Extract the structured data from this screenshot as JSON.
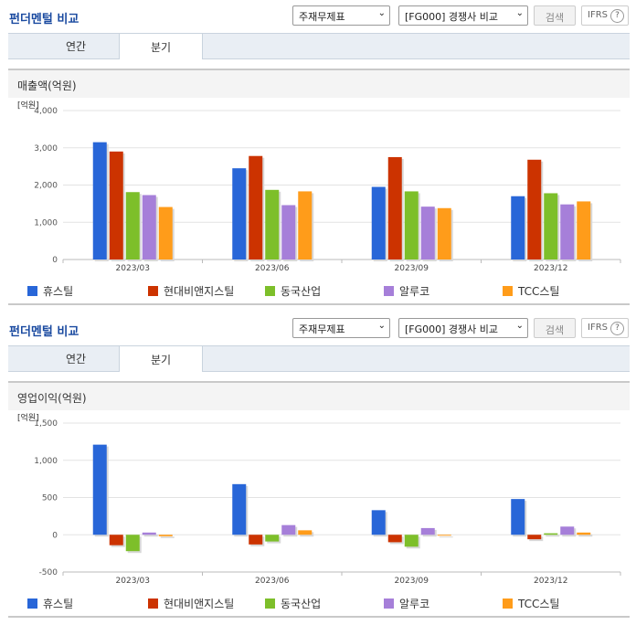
{
  "panels": [
    {
      "header": {
        "title": "펀더멘털 비교",
        "report_select": "주재무제표",
        "peer_select": "[FG000] 경쟁사 비교",
        "search_button": "검색",
        "ifrs_label": "IFRS",
        "help_icon": "?"
      },
      "tabs": [
        "연간",
        "분기"
      ],
      "active_tab": 1,
      "metric_title": "매출액(억원)"
    },
    {
      "header": {
        "title": "펀더멘털 비교",
        "report_select": "주재무제표",
        "peer_select": "[FG000] 경쟁사 비교",
        "search_button": "검색",
        "ifrs_label": "IFRS",
        "help_icon": "?"
      },
      "tabs": [
        "연간",
        "분기"
      ],
      "active_tab": 1,
      "metric_title": "영업이익(억원)"
    }
  ],
  "legend": [
    {
      "name": "휴스틸",
      "color": "#2866d8"
    },
    {
      "name": "현대비앤지스틸",
      "color": "#cc3300"
    },
    {
      "name": "동국산업",
      "color": "#7dbf2a"
    },
    {
      "name": "알루코",
      "color": "#a67fd9"
    },
    {
      "name": "TCC스틸",
      "color": "#ff9c1a"
    }
  ],
  "chart_data": [
    {
      "type": "bar",
      "unit_label": "[억원]",
      "categories": [
        "2023/03",
        "2023/06",
        "2023/09",
        "2023/12"
      ],
      "ylim": [
        0,
        4000
      ],
      "yticks": [
        0,
        1000,
        2000,
        3000,
        4000
      ],
      "ytick_labels": [
        "0",
        "1,000",
        "2,000",
        "3,000",
        "4,000"
      ],
      "series": [
        {
          "name": "휴스틸",
          "values": [
            3150,
            2450,
            1950,
            1700
          ]
        },
        {
          "name": "현대비앤지스틸",
          "values": [
            2900,
            2780,
            2750,
            2680
          ]
        },
        {
          "name": "동국산업",
          "values": [
            1810,
            1870,
            1830,
            1780
          ]
        },
        {
          "name": "알루코",
          "values": [
            1730,
            1460,
            1420,
            1480
          ]
        },
        {
          "name": "TCC스틸",
          "values": [
            1410,
            1830,
            1380,
            1560
          ]
        }
      ]
    },
    {
      "type": "bar",
      "unit_label": "[억원]",
      "categories": [
        "2023/03",
        "2023/06",
        "2023/09",
        "2023/12"
      ],
      "ylim": [
        -500,
        1500
      ],
      "yticks": [
        -500,
        0,
        500,
        1000,
        1500
      ],
      "ytick_labels": [
        "-500",
        "0",
        "500",
        "1,000",
        "1,500"
      ],
      "series": [
        {
          "name": "휴스틸",
          "values": [
            1210,
            680,
            330,
            480
          ]
        },
        {
          "name": "현대비앤지스틸",
          "values": [
            -140,
            -130,
            -100,
            -60
          ]
        },
        {
          "name": "동국산업",
          "values": [
            -220,
            -90,
            -160,
            20
          ]
        },
        {
          "name": "알루코",
          "values": [
            30,
            130,
            90,
            110
          ]
        },
        {
          "name": "TCC스틸",
          "values": [
            -20,
            60,
            0,
            30
          ]
        }
      ]
    }
  ]
}
